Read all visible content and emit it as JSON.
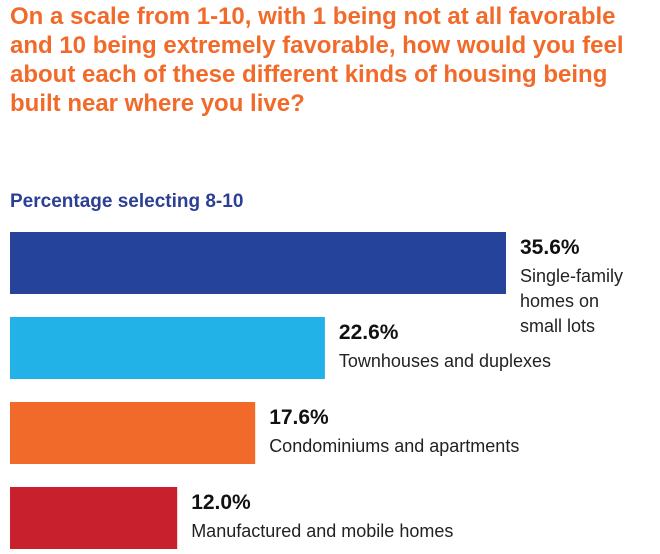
{
  "question": "On a scale from 1-10, with 1 being not at all favorable and 10 being extremely favorable, how would you feel about each of these different kinds of housing being built near where you live?",
  "chart_data": {
    "type": "bar",
    "orientation": "horizontal",
    "title": "On a scale from 1-10, with 1 being not at all favorable and 10 being extremely favorable, how would you feel about each of these different kinds of housing being built near where you live?",
    "subtitle": "Percentage selecting 8-10",
    "unit": "%",
    "categories": [
      "Single-family homes on small lots",
      "Townhouses and duplexes",
      "Condominiums and apartments",
      "Manufactured and mobile homes"
    ],
    "values": [
      35.6,
      22.6,
      17.6,
      12.0
    ],
    "value_labels": [
      "35.6%",
      "22.6%",
      "17.6%",
      "12.0%"
    ],
    "label_lines": [
      [
        "Single-family",
        "homes on",
        "small lots"
      ],
      [
        "Townhouses and duplexes"
      ],
      [
        "Condominiums and apartments"
      ],
      [
        "Manufactured and mobile homes"
      ]
    ],
    "colors": [
      "#25439a",
      "#22b2e8",
      "#f26a2a",
      "#c8202c"
    ],
    "xlabel": "",
    "ylabel": "",
    "xlim": [
      0,
      35.6
    ],
    "grid": false,
    "legend": "none"
  }
}
